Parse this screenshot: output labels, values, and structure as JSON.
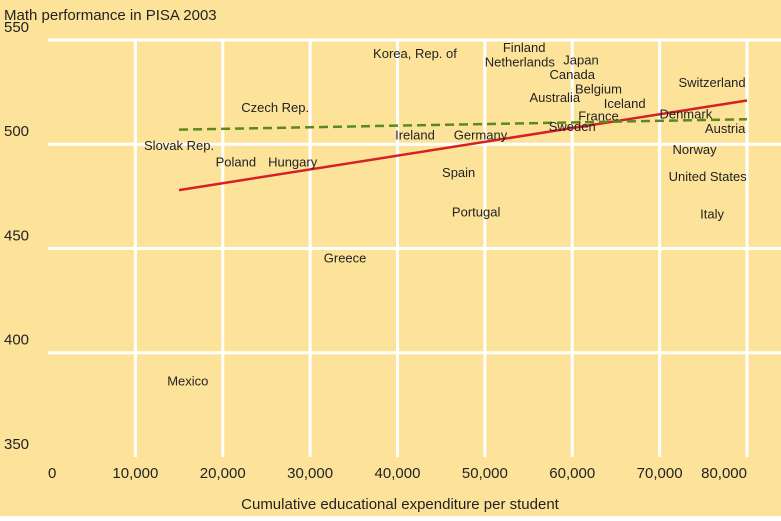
{
  "chart_data": {
    "type": "scatter",
    "title": "Math performance in PISA 2003",
    "x_label": "Cumulative educational expenditure per student",
    "background": "#fde39a",
    "grid": true,
    "grid_color": "#ffffff",
    "label_color": "#222222",
    "xlim": [
      0,
      80000
    ],
    "xticks": [
      {
        "value": 0,
        "label": "0"
      },
      {
        "value": 10000,
        "label": "10,000"
      },
      {
        "value": 20000,
        "label": "20,000"
      },
      {
        "value": 30000,
        "label": "30,000"
      },
      {
        "value": 40000,
        "label": "40,000"
      },
      {
        "value": 50000,
        "label": "50,000"
      },
      {
        "value": 60000,
        "label": "60,000"
      },
      {
        "value": 70000,
        "label": "70,000"
      },
      {
        "value": 80000,
        "label": "80,000"
      }
    ],
    "ylim": [
      350,
      550
    ],
    "yticks": [
      350,
      400,
      450,
      500,
      550
    ],
    "point_labels": [
      "Korea, Rep. of",
      "Finland",
      "Netherlands",
      "Japan",
      "Canada",
      "Belgium",
      "Australia",
      "Iceland",
      "Switzerland",
      "Czech Rep.",
      "Denmark",
      "France",
      "Sweden",
      "Austria",
      "Ireland",
      "Germany",
      "Slovak Rep.",
      "Norway",
      "Poland",
      "Hungary",
      "Spain",
      "United States",
      "Portugal",
      "Italy",
      "Greece",
      "Mexico"
    ],
    "x": [
      42000,
      54500,
      54000,
      61000,
      60000,
      63000,
      58000,
      66000,
      76000,
      26000,
      73000,
      63000,
      60000,
      77500,
      42000,
      49500,
      15000,
      74000,
      21500,
      28000,
      47000,
      75500,
      49000,
      76000,
      34000,
      16000
    ],
    "values": [
      543,
      546,
      539,
      540,
      533,
      526,
      522,
      519,
      529,
      517,
      514,
      513,
      508,
      507,
      504,
      504,
      499,
      497,
      491,
      491,
      486,
      484,
      467,
      466,
      445,
      386
    ],
    "trend_lines": [
      {
        "color": "#d42027",
        "dashed": false,
        "x": [
          15000,
          80000
        ],
        "values": [
          478,
          521
        ]
      },
      {
        "color": "#5a8a1e",
        "dashed": true,
        "x": [
          15000,
          80000
        ],
        "values": [
          507,
          512
        ]
      }
    ]
  }
}
